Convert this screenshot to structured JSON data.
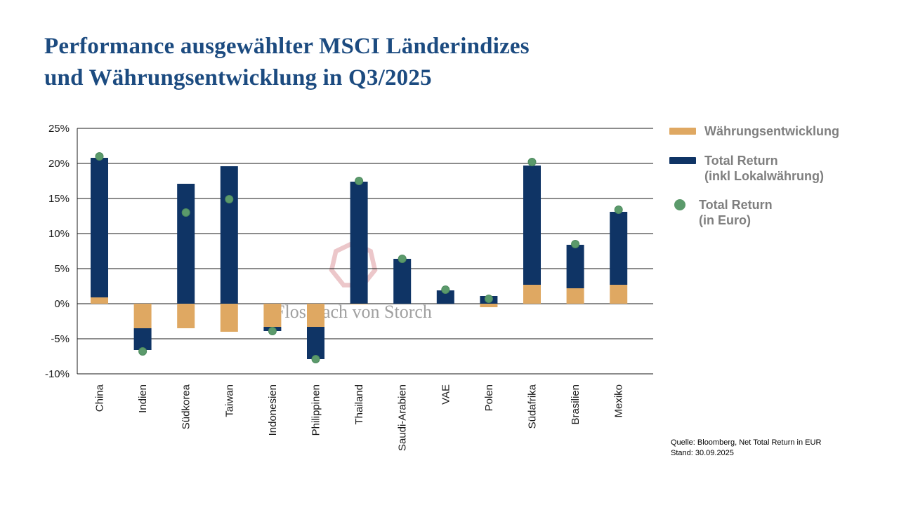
{
  "page": {
    "title_line1": "Performance ausgewählter MSCI Länderindizes",
    "title_line2": "und Währungsentwicklung in Q3/2025"
  },
  "watermark": {
    "text": "Flossbach von Storch",
    "logo": "heptagon-icon"
  },
  "colors": {
    "title_navy": "#1c4b80",
    "currency_orange": "#dfa862",
    "total_return_navy": "#0f3465",
    "euro_dot_green": "#5b9a6b",
    "euro_dot_edge": "#4d8a5e",
    "legend_text_gray": "#7f7f7f",
    "gridline": "#1a1a1a",
    "axis_text": "#1a1a1a",
    "watermark_pink": "#ecc7ca",
    "watermark_gray": "#a0a0a0"
  },
  "legend": {
    "items": [
      {
        "swatch": "bar",
        "color_key": "currency_orange",
        "line1": "Währungsentwicklung",
        "line2": ""
      },
      {
        "swatch": "bar",
        "color_key": "total_return_navy",
        "line1": "Total Return",
        "line2": "(inkl Lokalwährung)"
      },
      {
        "swatch": "dot",
        "color_key": "euro_dot_green",
        "line1": "Total Return",
        "line2": "(in Euro)"
      }
    ]
  },
  "footer": {
    "line1": "Quelle: Bloomberg, Net Total Return in EUR",
    "line2": "Stand: 30.09.2025"
  },
  "chart_data": {
    "type": "bar",
    "stacked": true,
    "title": "Performance ausgewählter MSCI Länderindizes und Währungsentwicklung in Q3/2025",
    "categories": [
      "China",
      "Indien",
      "Südkorea",
      "Taiwan",
      "Indonesien",
      "Philippinen",
      "Thailand",
      "Saudi-Arabien",
      "VAE",
      "Polen",
      "Südafrika",
      "Brasilien",
      "Mexiko"
    ],
    "series": [
      {
        "name": "Währungsentwicklung",
        "color_key": "currency_orange",
        "values": [
          0.9,
          -3.5,
          -3.5,
          -4.0,
          -3.3,
          -3.3,
          -0.1,
          0.0,
          0.0,
          -0.5,
          2.7,
          2.2,
          2.7
        ]
      },
      {
        "name": "Total Return (inkl Lokalwährung)",
        "color_key": "total_return_navy",
        "values": [
          19.9,
          -3.1,
          17.1,
          19.6,
          -0.6,
          -4.6,
          17.4,
          6.4,
          1.9,
          1.1,
          17.0,
          6.2,
          10.4
        ]
      }
    ],
    "dot_series": {
      "name": "Total Return (in Euro)",
      "color_key": "euro_dot_green",
      "values": [
        21.0,
        -6.8,
        13.0,
        14.9,
        -3.9,
        -7.9,
        17.5,
        6.4,
        2.0,
        0.7,
        20.2,
        8.5,
        13.4
      ]
    },
    "xlabel": "",
    "ylabel": "",
    "ylim": [
      -10,
      25
    ],
    "ytick_step": 5,
    "ytick_suffix": "%",
    "grid": true,
    "legend_position": "right"
  }
}
